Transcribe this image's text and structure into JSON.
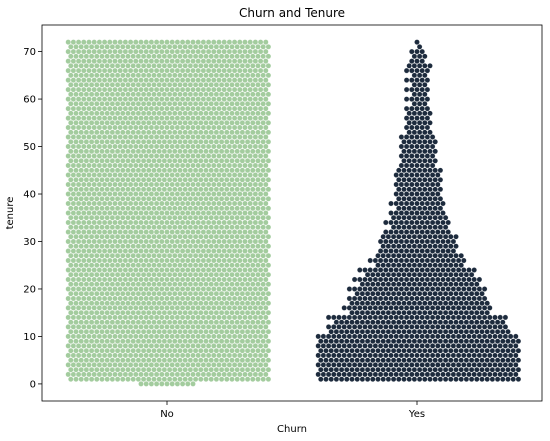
{
  "chart_data": {
    "type": "swarm",
    "title": "Churn and Tenure",
    "xlabel": "Churn",
    "ylabel": "tenure",
    "categories": [
      "No",
      "Yes"
    ],
    "ylim": [
      -3.6,
      75.6
    ],
    "yticks": [
      0,
      10,
      20,
      30,
      40,
      50,
      60,
      70
    ],
    "grid": false,
    "legend": "none",
    "colors": {
      "No": "#a3cc9e",
      "Yes": "#1d2b3d"
    },
    "series": [
      {
        "category": "No",
        "tenure_distribution": "dense and roughly uniform from 0 to 72 months; a few observations at tenure 0",
        "tenure_range": [
          0,
          72
        ],
        "band_halfwidth_by_tenure": [
          [
            0,
            0.22
          ],
          [
            1,
            0.82
          ],
          [
            72,
            0.82
          ]
        ]
      },
      {
        "category": "Yes",
        "tenure_distribution": "heavily concentrated at low tenure (1-10 months), thinning with increasing tenure to 72 months",
        "tenure_range": [
          1,
          72
        ],
        "band_halfwidth_by_tenure": [
          [
            1,
            0.82
          ],
          [
            10,
            0.82
          ],
          [
            11,
            0.74
          ],
          [
            13,
            0.72
          ],
          [
            15,
            0.6
          ],
          [
            18,
            0.55
          ],
          [
            21,
            0.5
          ],
          [
            23,
            0.46
          ],
          [
            25,
            0.38
          ],
          [
            28,
            0.33
          ],
          [
            32,
            0.27
          ],
          [
            36,
            0.22
          ],
          [
            40,
            0.2
          ],
          [
            43,
            0.2
          ],
          [
            46,
            0.16
          ],
          [
            50,
            0.16
          ],
          [
            53,
            0.12
          ],
          [
            56,
            0.12
          ],
          [
            59,
            0.1
          ],
          [
            62,
            0.1
          ],
          [
            65,
            0.07
          ],
          [
            66,
            0.11
          ],
          [
            68,
            0.08
          ],
          [
            70,
            0.06
          ],
          [
            72,
            0.04
          ]
        ]
      }
    ]
  }
}
